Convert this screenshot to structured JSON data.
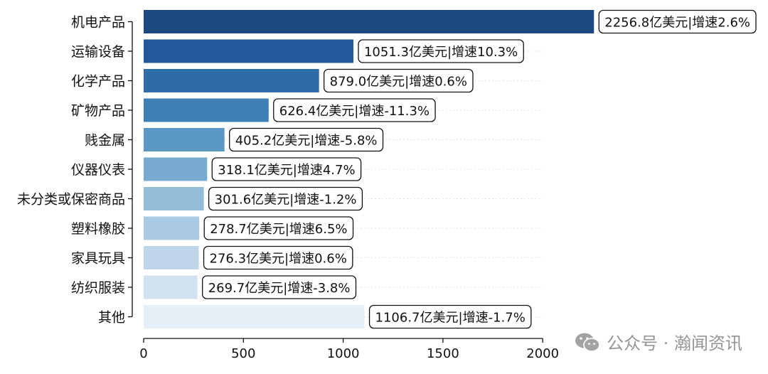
{
  "chart_data": {
    "type": "bar",
    "orientation": "horizontal",
    "categories": [
      "机电产品",
      "运输设备",
      "化学产品",
      "矿物产品",
      "贱金属",
      "仪器仪表",
      "未分类或保密商品",
      "塑料橡胶",
      "家具玩具",
      "纺织服装",
      "其他"
    ],
    "values": [
      2256.8,
      1051.3,
      879.0,
      626.4,
      405.2,
      318.1,
      301.6,
      278.7,
      276.3,
      269.7,
      1106.7
    ],
    "data_labels": [
      "2256.8亿美元|增速2.6%",
      "1051.3亿美元|增速10.3%",
      "879.0亿美元|增速0.6%",
      "626.4亿美元|增速-11.3%",
      "405.2亿美元|增速-5.8%",
      "318.1亿美元|增速4.7%",
      "301.6亿美元|增速-1.2%",
      "278.7亿美元|增速6.5%",
      "276.3亿美元|增速0.6%",
      "269.7亿美元|增速-3.8%",
      "1106.7亿美元|增速-1.7%"
    ],
    "colors": [
      "#1c4a80",
      "#22599a",
      "#2e6ca8",
      "#3e7fb6",
      "#5a97c4",
      "#78aacf",
      "#92bcd8",
      "#a9cae2",
      "#bfd5e9",
      "#d3e2f1",
      "#e6eef8"
    ],
    "xlim": [
      0,
      2300
    ],
    "xticks": [
      0,
      500,
      1000,
      1500,
      2000
    ],
    "grid": false,
    "title": "",
    "xlabel": "",
    "ylabel": ""
  },
  "watermark": {
    "text": "公众号 · 瀚闻资讯",
    "icon": "wechat-icon"
  }
}
